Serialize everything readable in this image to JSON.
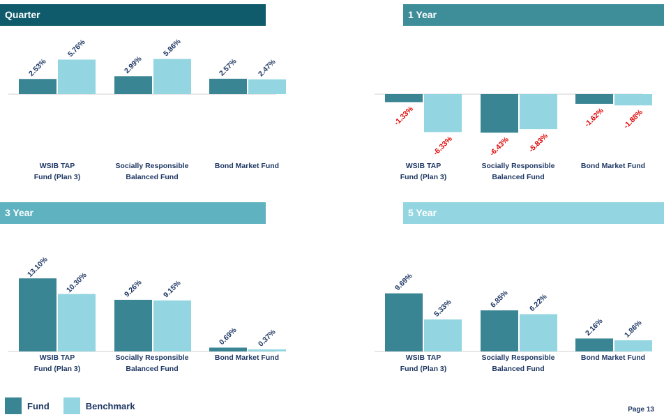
{
  "colors": {
    "fund": "#3a8594",
    "benchmark": "#93d6e1",
    "positive_label": "#1f3864",
    "negative_label": "#e00000",
    "axis": "#d0d0d0",
    "banner_quarter": "#0f5b6b",
    "banner_1yr": "#3e8e9a",
    "banner_3yr": "#5fb3c0",
    "banner_5yr": "#93d6e1"
  },
  "legend": {
    "fund_label": "Fund",
    "benchmark_label": "Benchmark"
  },
  "page": {
    "number": "Page 13"
  },
  "chart_data": [
    {
      "type": "bar",
      "title": "Quarter",
      "categories": [
        [
          "WSIB TAP",
          "Fund (Plan 3)"
        ],
        [
          "Socially Responsible",
          "Balanced Fund"
        ],
        [
          "Bond Market Fund"
        ]
      ],
      "series": [
        {
          "name": "Fund",
          "values": [
            2.53,
            2.99,
            2.57
          ],
          "labels": [
            "2.53%",
            "2.99%",
            "2.57%"
          ]
        },
        {
          "name": "Benchmark",
          "values": [
            5.76,
            5.86,
            2.47
          ],
          "labels": [
            "5.76%",
            "5.86%",
            "2.47%"
          ]
        }
      ],
      "ylim": [
        -8,
        8
      ],
      "grid": false,
      "legend": "bottom-left"
    },
    {
      "type": "bar",
      "title": "1 Year",
      "categories": [
        [
          "WSIB TAP",
          "Fund (Plan 3)"
        ],
        [
          "Socially Responsible",
          "Balanced Fund"
        ],
        [
          "Bond Market Fund"
        ]
      ],
      "series": [
        {
          "name": "Fund",
          "values": [
            -1.33,
            -6.43,
            -1.62
          ],
          "labels": [
            "-1.33%",
            "-6.43%",
            "-1.62%"
          ]
        },
        {
          "name": "Benchmark",
          "values": [
            -6.33,
            -5.83,
            -1.88
          ],
          "labels": [
            "-6.33%",
            "-5.83%",
            "-1.88%"
          ]
        }
      ],
      "ylim": [
        -8,
        8
      ],
      "grid": false,
      "legend": "bottom-left"
    },
    {
      "type": "bar",
      "title": "3 Year",
      "categories": [
        [
          "WSIB TAP",
          "Fund (Plan 3)"
        ],
        [
          "Socially Responsible",
          "Balanced Fund"
        ],
        [
          "Bond Market Fund"
        ]
      ],
      "series": [
        {
          "name": "Fund",
          "values": [
            13.1,
            9.26,
            0.69
          ],
          "labels": [
            "13.10%",
            "9.26%",
            "0.69%"
          ]
        },
        {
          "name": "Benchmark",
          "values": [
            10.3,
            9.15,
            0.37
          ],
          "labels": [
            "10.30%",
            "9.15%",
            "0.37%"
          ]
        }
      ],
      "ylim": [
        0,
        16
      ],
      "grid": false,
      "legend": "bottom-left"
    },
    {
      "type": "bar",
      "title": "5 Year",
      "categories": [
        [
          "WSIB TAP",
          "Fund (Plan 3)"
        ],
        [
          "Socially Responsible",
          "Balanced Fund"
        ],
        [
          "Bond Market Fund"
        ]
      ],
      "series": [
        {
          "name": "Fund",
          "values": [
            9.69,
            6.85,
            2.16
          ],
          "labels": [
            "9.69%",
            "6.85%",
            "2.16%"
          ]
        },
        {
          "name": "Benchmark",
          "values": [
            5.33,
            6.22,
            1.86
          ],
          "labels": [
            "5.33%",
            "6.22%",
            "1.86%"
          ]
        }
      ],
      "ylim": [
        0,
        16
      ],
      "grid": false,
      "legend": "bottom-left"
    }
  ]
}
